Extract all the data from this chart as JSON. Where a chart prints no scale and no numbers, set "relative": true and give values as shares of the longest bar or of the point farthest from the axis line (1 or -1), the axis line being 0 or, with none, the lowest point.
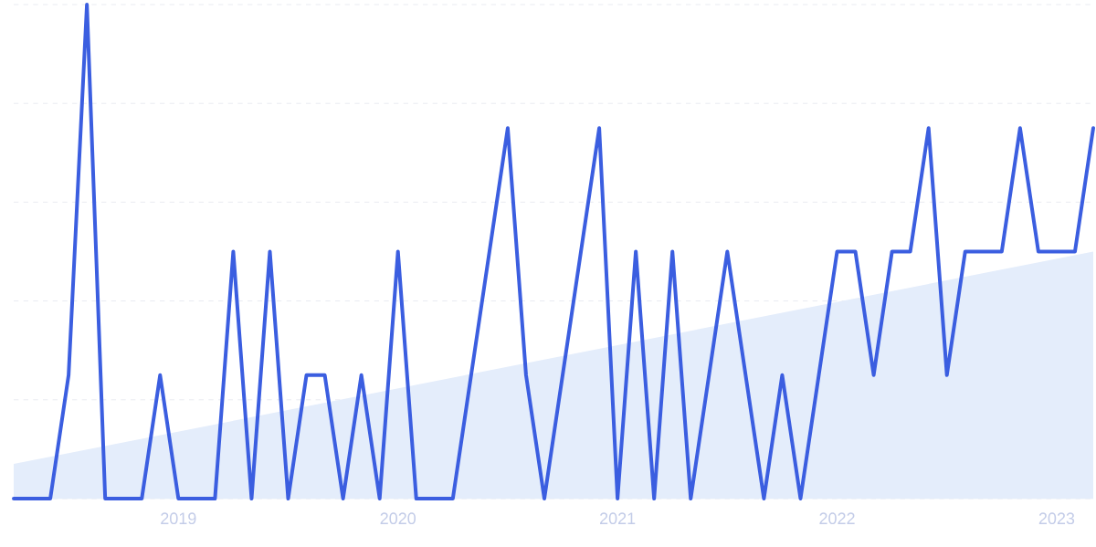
{
  "chart_data": {
    "type": "line",
    "relative": true,
    "grid": "y",
    "tick_labels": "x",
    "x": [
      "2018-04",
      "2018-05",
      "2018-06",
      "2018-07",
      "2018-08",
      "2018-09",
      "2018-10",
      "2018-11",
      "2018-12",
      "2019-01",
      "2019-02",
      "2019-03",
      "2019-04",
      "2019-05",
      "2019-06",
      "2019-07",
      "2019-08",
      "2019-09",
      "2019-10",
      "2019-11",
      "2019-12",
      "2020-01",
      "2020-02",
      "2020-03",
      "2020-04",
      "2020-05",
      "2020-06",
      "2020-07",
      "2020-08",
      "2020-09",
      "2020-10",
      "2020-11",
      "2020-12",
      "2021-01",
      "2021-02",
      "2021-03",
      "2021-04",
      "2021-05",
      "2021-06",
      "2021-07",
      "2021-08",
      "2021-09",
      "2021-10",
      "2021-11",
      "2021-12",
      "2022-01",
      "2022-02",
      "2022-03",
      "2022-04",
      "2022-05",
      "2022-06",
      "2022-07",
      "2022-08",
      "2022-09",
      "2022-10",
      "2022-11",
      "2022-12",
      "2023-01",
      "2023-02",
      "2023-03"
    ],
    "xlim": [
      "2018-04",
      "2023-03"
    ],
    "xticks": [
      "2019",
      "2020",
      "2021",
      "2022",
      "2023"
    ],
    "series": [
      {
        "type": "area",
        "color": "#e4edfb",
        "x": [
          "2018-04",
          "2023-03"
        ],
        "values": [
          0.07,
          0.5
        ]
      },
      {
        "color": "#3b5ee0",
        "values": [
          0,
          0,
          0,
          0.25,
          1,
          0,
          0,
          0,
          0.25,
          0,
          0,
          0,
          0.5,
          0,
          0.5,
          0,
          0.25,
          0.25,
          0,
          0.25,
          0,
          0.5,
          0,
          0,
          0,
          0.25,
          0.5,
          0.75,
          0.25,
          0,
          0.25,
          0.5,
          0.75,
          0,
          0.5,
          0,
          0.5,
          0,
          0.25,
          0.5,
          0.25,
          0,
          0.25,
          0,
          0.25,
          0.5,
          0.5,
          0.25,
          0.5,
          0.5,
          0.75,
          0.25,
          0.5,
          0.5,
          0.5,
          0.75,
          0.5,
          0.5,
          0.5,
          0.75
        ]
      }
    ]
  }
}
